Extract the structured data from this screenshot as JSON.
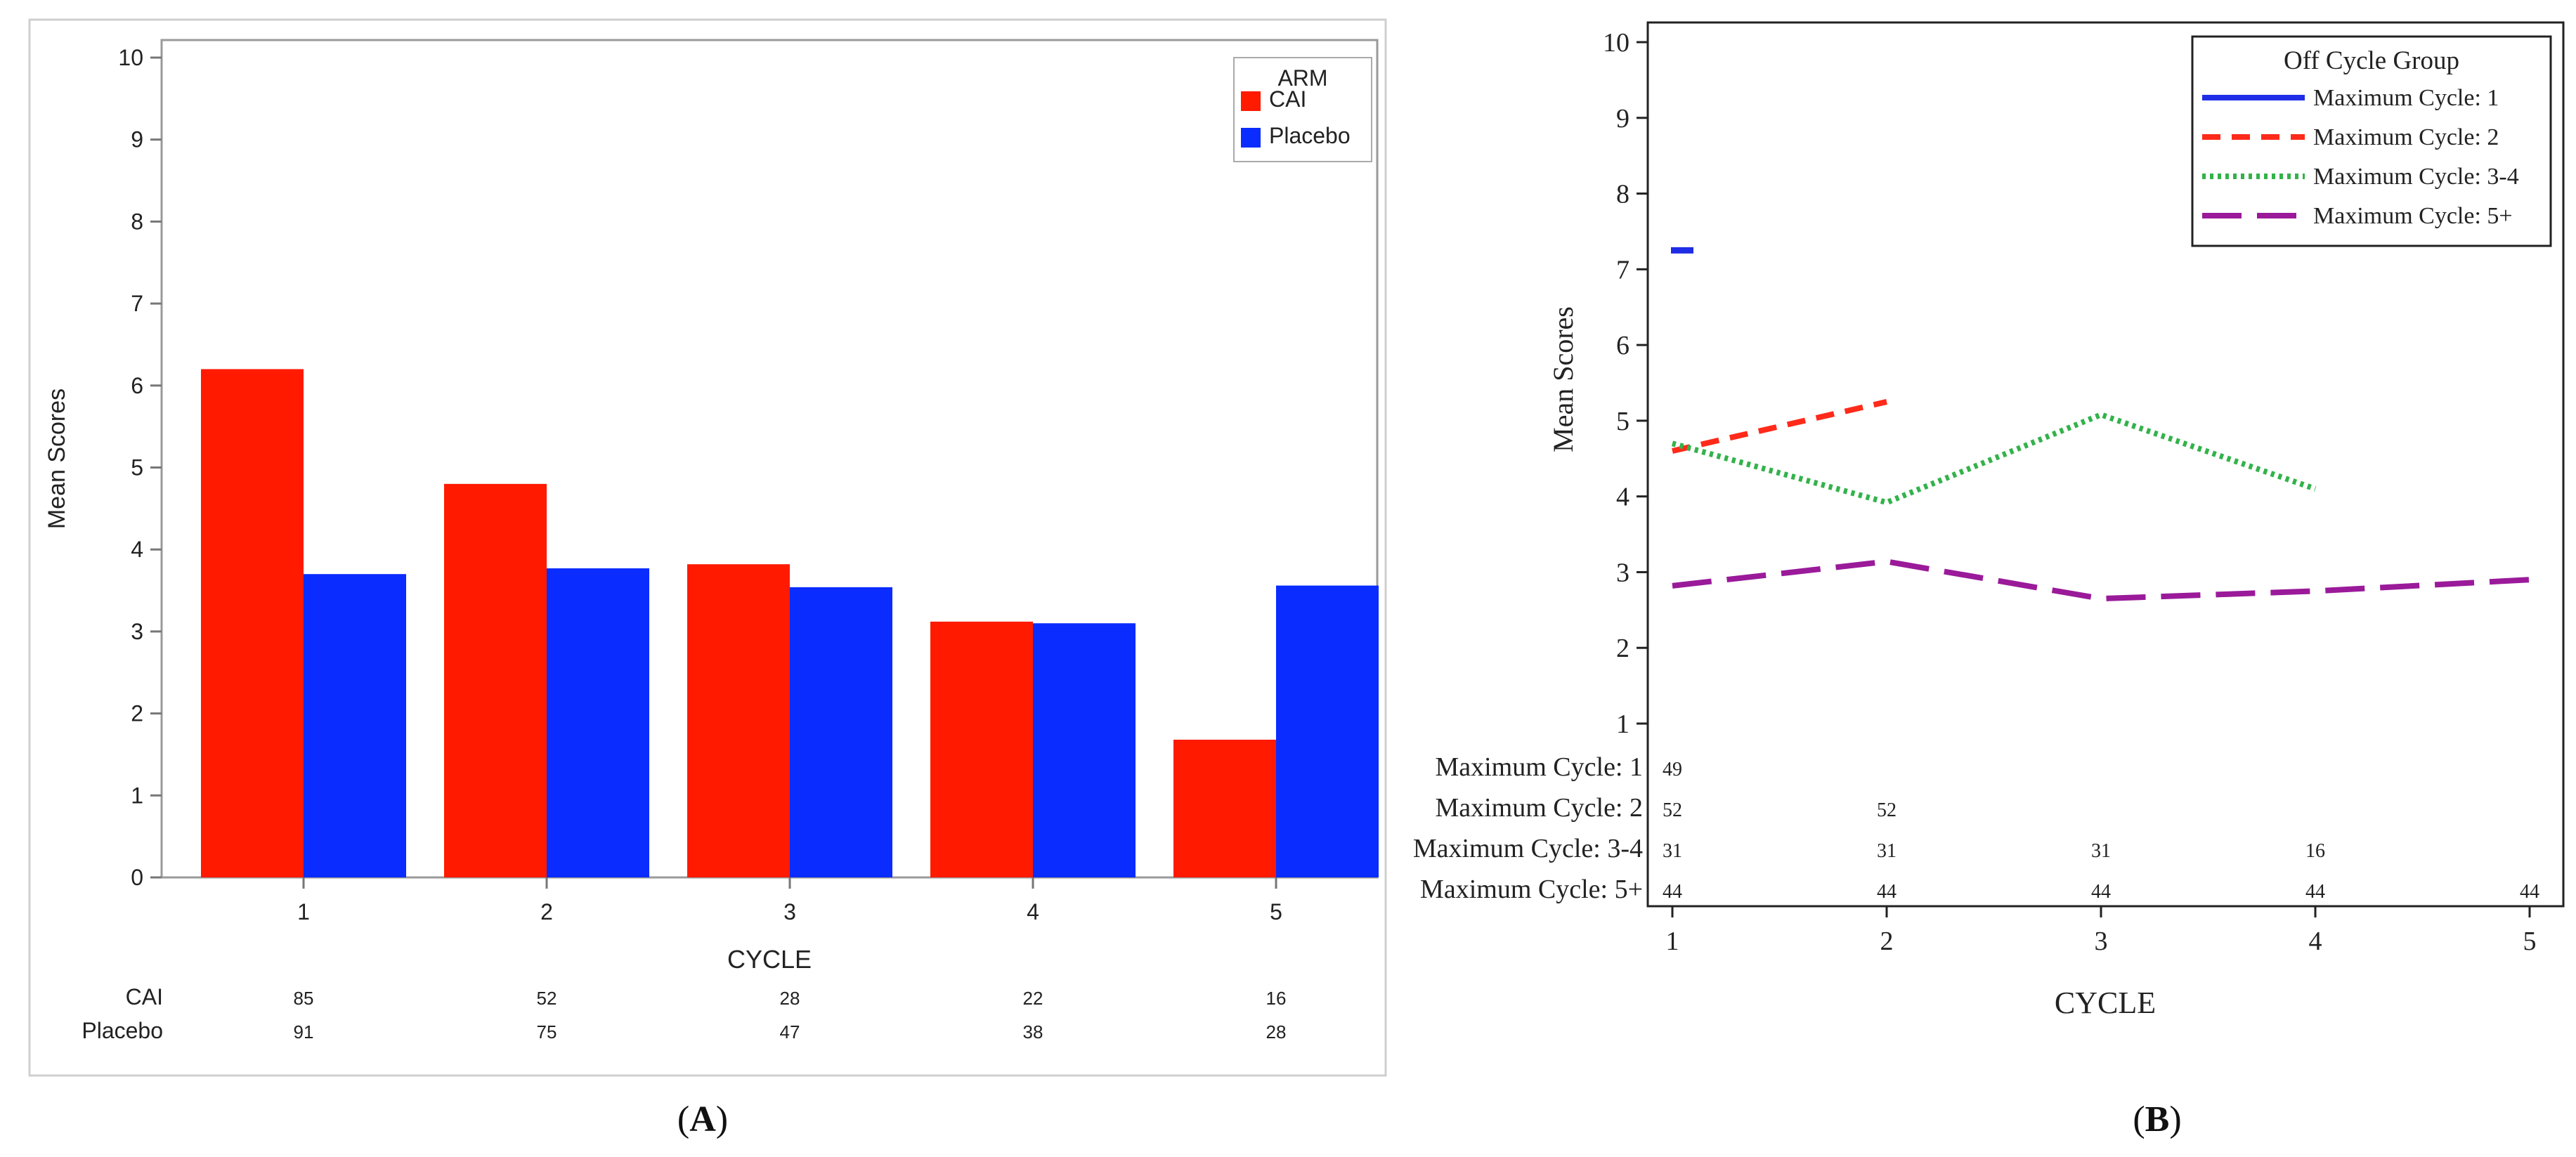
{
  "chart_data": [
    {
      "type": "bar",
      "panel_label": "A",
      "title": "",
      "xlabel": "CYCLE",
      "ylabel": "Mean Scores",
      "ylim": [
        0,
        10
      ],
      "yticks": [
        "0",
        "1",
        "2",
        "3",
        "4",
        "5",
        "6",
        "7",
        "8",
        "9",
        "10"
      ],
      "categories": [
        "1",
        "2",
        "3",
        "4",
        "5"
      ],
      "grid": false,
      "legend": {
        "title": "ARM",
        "position": "top-right"
      },
      "series": [
        {
          "name": "CAI",
          "color": "#ff1a00",
          "values": [
            6.2,
            4.8,
            3.82,
            3.12,
            1.68
          ]
        },
        {
          "name": "Placebo",
          "color": "#0a2cff",
          "values": [
            3.7,
            3.77,
            3.54,
            3.1,
            3.56
          ]
        }
      ],
      "counts_table": [
        {
          "label": "CAI",
          "values": [
            "85",
            "52",
            "28",
            "22",
            "16"
          ]
        },
        {
          "label": "Placebo",
          "values": [
            "91",
            "75",
            "47",
            "38",
            "28"
          ]
        }
      ]
    },
    {
      "type": "line",
      "panel_label": "B",
      "title": "",
      "xlabel": "CYCLE",
      "ylabel": "Mean Scores",
      "ylim": [
        1,
        10
      ],
      "yticks": [
        "1",
        "2",
        "3",
        "4",
        "5",
        "6",
        "7",
        "8",
        "9",
        "10"
      ],
      "x": [
        "1",
        "2",
        "3",
        "4",
        "5"
      ],
      "grid": false,
      "legend": {
        "title": "Off Cycle Group",
        "position": "top-right"
      },
      "series": [
        {
          "name": "Maximum Cycle: 1",
          "color": "#1f2de6",
          "style": "solid",
          "x": [
            1
          ],
          "values": [
            7.25
          ]
        },
        {
          "name": "Maximum Cycle: 2",
          "color": "#ff2a1a",
          "style": "dashed",
          "x": [
            1,
            2
          ],
          "values": [
            4.6,
            5.25
          ]
        },
        {
          "name": "Maximum Cycle: 3-4",
          "color": "#33b24a",
          "style": "dotted",
          "x": [
            1,
            2,
            3,
            4
          ],
          "values": [
            4.7,
            3.92,
            5.08,
            4.1
          ]
        },
        {
          "name": "Maximum Cycle: 5+",
          "color": "#9a1a9a",
          "style": "longdash",
          "x": [
            1,
            2,
            3,
            4,
            5
          ],
          "values": [
            2.82,
            3.14,
            2.65,
            2.75,
            2.9
          ]
        }
      ],
      "counts_table": [
        {
          "label": "Maximum Cycle: 1",
          "values": [
            "49",
            "",
            "",
            "",
            ""
          ]
        },
        {
          "label": "Maximum Cycle: 2",
          "values": [
            "52",
            "52",
            "",
            "",
            ""
          ]
        },
        {
          "label": "Maximum Cycle: 3-4",
          "values": [
            "31",
            "31",
            "31",
            "16",
            ""
          ]
        },
        {
          "label": "Maximum Cycle: 5+",
          "values": [
            "44",
            "44",
            "44",
            "44",
            "44"
          ]
        }
      ]
    }
  ],
  "captions": {
    "a": "A",
    "b": "B"
  }
}
